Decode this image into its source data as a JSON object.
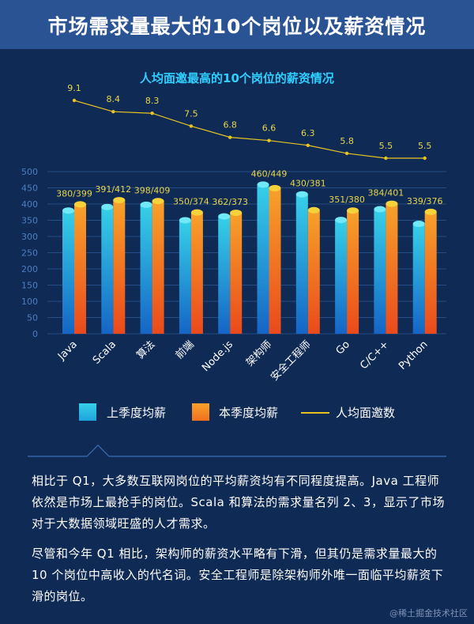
{
  "header": {
    "title": "市场需求量最大的10个岗位以及薪资情况"
  },
  "chart_data": {
    "type": "bar",
    "title": "人均面邀最高的10个岗位的薪资情况",
    "categories": [
      "Java",
      "Scala",
      "算法",
      "前端",
      "Node.js",
      "架构师",
      "安全工程师",
      "Go",
      "C/C++",
      "Python"
    ],
    "series": [
      {
        "name": "上季度均薪",
        "values": [
          380,
          391,
          398,
          350,
          362,
          460,
          430,
          351,
          384,
          339
        ],
        "color": "#1fa3dc"
      },
      {
        "name": "本季度均薪",
        "values": [
          399,
          412,
          409,
          374,
          373,
          449,
          381,
          380,
          401,
          376
        ],
        "color": "#f0701e"
      },
      {
        "name": "人均面邀数",
        "type": "line",
        "values": [
          9.1,
          8.4,
          8.3,
          7.5,
          6.8,
          6.6,
          6.3,
          5.8,
          5.5,
          5.5
        ],
        "color": "#e8c422"
      }
    ],
    "bar_labels": [
      "380/399",
      "391/412",
      "398/409",
      "350/374",
      "362/373",
      "460/449",
      "430/381",
      "351/380",
      "384/401",
      "339/376"
    ],
    "yticks": [
      "0",
      "50",
      "100",
      "150",
      "200",
      "250",
      "300",
      "350",
      "400",
      "450",
      "500"
    ],
    "ylim": [
      0,
      500
    ],
    "grid": true,
    "legend_position": "bottom"
  },
  "legend": {
    "prev_label": "上季度均薪",
    "curr_label": "本季度均薪",
    "line_label": "人均面邀数",
    "prev_color": "#1fa3dc",
    "curr_color": "#f0701e",
    "line_color": "#e8c422"
  },
  "text": {
    "para1": "相比于 Q1，大多数互联网岗位的平均薪资均有不同程度提高。Java 工程师依然是市场上最抢手的岗位。Scala 和算法的需求量名列 2、3，显示了市场对于大数据领域旺盛的人才需求。",
    "para2": "尽管和今年 Q1 相比，架构师的薪资水平略有下滑，但其仍是需求量最大的 10 个岗位中高收入的代名词。安全工程师是除架构师外唯一面临平均薪资下滑的岗位。"
  },
  "watermark": "@稀土掘金技术社区"
}
